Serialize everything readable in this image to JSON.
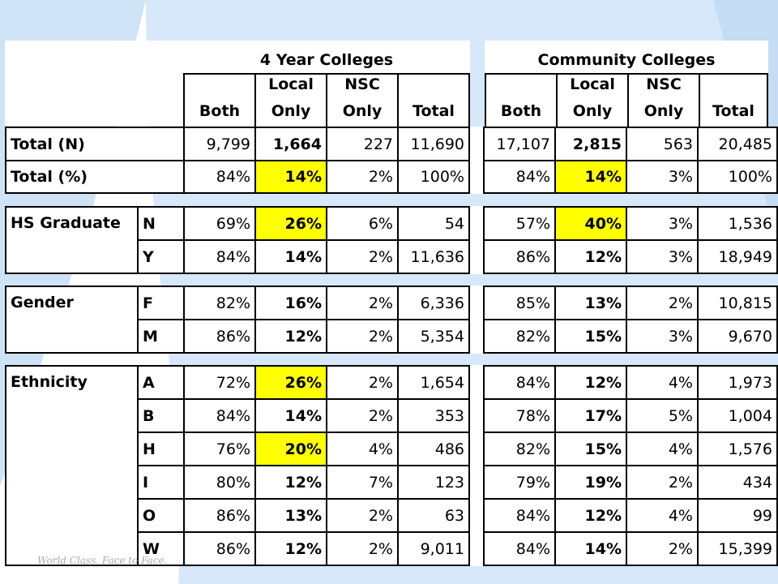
{
  "groups": {
    "four_year": "4 Year Colleges",
    "community": "Community Colleges"
  },
  "column_headers": {
    "both": "Both",
    "local_line1": "Local",
    "local_line2": "Only",
    "nsc_line1": "NSC",
    "nsc_line2": "Only",
    "total": "Total"
  },
  "totals": {
    "n": {
      "label": "Total (N)",
      "four_year": [
        "9,799",
        "1,664",
        "227",
        "11,690"
      ],
      "community": [
        "17,107",
        "2,815",
        "563",
        "20,485"
      ]
    },
    "pct": {
      "label": "Total (%)",
      "four_year": [
        "84%",
        "14%",
        "2%",
        "100%"
      ],
      "community": [
        "84%",
        "14%",
        "3%",
        "100%"
      ]
    }
  },
  "sections": [
    {
      "label": "HS Graduate",
      "rows": [
        {
          "code": "N",
          "four_year": [
            "69%",
            "26%",
            "6%",
            "54"
          ],
          "community": [
            "57%",
            "40%",
            "3%",
            "1,536"
          ],
          "hl4": true,
          "hlc": true
        },
        {
          "code": "Y",
          "four_year": [
            "84%",
            "14%",
            "2%",
            "11,636"
          ],
          "community": [
            "86%",
            "12%",
            "3%",
            "18,949"
          ],
          "hl4": false,
          "hlc": false
        }
      ]
    },
    {
      "label": "Gender",
      "rows": [
        {
          "code": "F",
          "four_year": [
            "82%",
            "16%",
            "2%",
            "6,336"
          ],
          "community": [
            "85%",
            "13%",
            "2%",
            "10,815"
          ],
          "hl4": false,
          "hlc": false
        },
        {
          "code": "M",
          "four_year": [
            "86%",
            "12%",
            "2%",
            "5,354"
          ],
          "community": [
            "82%",
            "15%",
            "3%",
            "9,670"
          ],
          "hl4": false,
          "hlc": false
        }
      ]
    },
    {
      "label": "Ethnicity",
      "rows": [
        {
          "code": "A",
          "four_year": [
            "72%",
            "26%",
            "2%",
            "1,654"
          ],
          "community": [
            "84%",
            "12%",
            "4%",
            "1,973"
          ],
          "hl4": true,
          "hlc": false
        },
        {
          "code": "B",
          "four_year": [
            "84%",
            "14%",
            "2%",
            "353"
          ],
          "community": [
            "78%",
            "17%",
            "5%",
            "1,004"
          ],
          "hl4": false,
          "hlc": false
        },
        {
          "code": "H",
          "four_year": [
            "76%",
            "20%",
            "4%",
            "486"
          ],
          "community": [
            "82%",
            "15%",
            "4%",
            "1,576"
          ],
          "hl4": true,
          "hlc": false
        },
        {
          "code": "I",
          "four_year": [
            "80%",
            "12%",
            "7%",
            "123"
          ],
          "community": [
            "79%",
            "19%",
            "2%",
            "434"
          ],
          "hl4": false,
          "hlc": false
        },
        {
          "code": "O",
          "four_year": [
            "86%",
            "13%",
            "2%",
            "63"
          ],
          "community": [
            "84%",
            "12%",
            "4%",
            "99"
          ],
          "hl4": false,
          "hlc": false
        },
        {
          "code": "W",
          "four_year": [
            "86%",
            "12%",
            "2%",
            "9,011"
          ],
          "community": [
            "84%",
            "14%",
            "2%",
            "15,399"
          ],
          "hl4": false,
          "hlc": false
        }
      ]
    }
  ],
  "footer_tagline": "World Class. Face to Face.",
  "colors": {
    "highlight": "#ffff00",
    "background_blue": "#cfe3f7"
  }
}
